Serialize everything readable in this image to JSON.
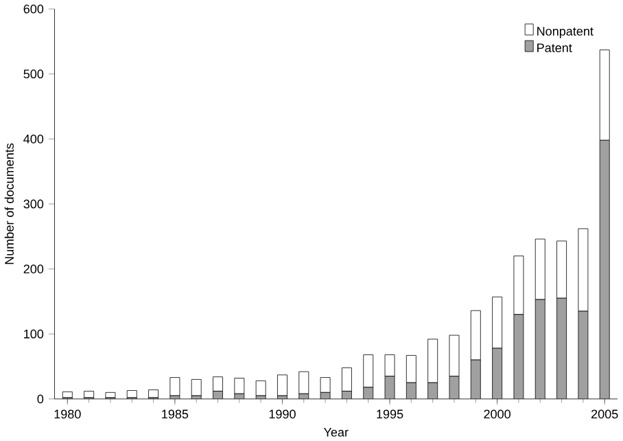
{
  "chart_data": {
    "type": "bar",
    "stacked": true,
    "xlabel": "Year",
    "ylabel": "Number of documents",
    "x": [
      1980,
      1981,
      1982,
      1983,
      1984,
      1985,
      1986,
      1987,
      1988,
      1989,
      1990,
      1991,
      1992,
      1993,
      1994,
      1995,
      1996,
      1997,
      1998,
      1999,
      2000,
      2001,
      2002,
      2003,
      2004,
      2005
    ],
    "series": [
      {
        "name": "Patent",
        "color": "#a0a0a0",
        "values": [
          2,
          2,
          2,
          2,
          2,
          5,
          5,
          12,
          8,
          5,
          5,
          8,
          10,
          12,
          18,
          35,
          25,
          25,
          35,
          60,
          78,
          130,
          153,
          155,
          135,
          398
        ]
      },
      {
        "name": "Nonpatent",
        "color": "#ffffff",
        "values": [
          9,
          10,
          8,
          11,
          12,
          28,
          25,
          22,
          24,
          23,
          32,
          34,
          23,
          36,
          50,
          33,
          42,
          67,
          63,
          76,
          79,
          90,
          93,
          88,
          127,
          139
        ]
      }
    ],
    "xlim": [
      1979.4,
      2005.6
    ],
    "xticks": [
      1980,
      1985,
      1990,
      1995,
      2000,
      2005
    ],
    "ylim": [
      0,
      600
    ],
    "yticks": [
      0,
      100,
      200,
      300,
      400,
      500,
      600
    ],
    "legend": "top right"
  }
}
